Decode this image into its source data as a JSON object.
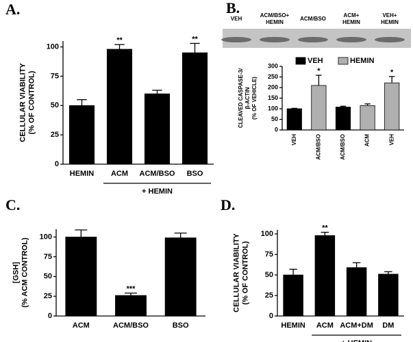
{
  "chart_data": [
    {
      "type": "bar",
      "panel": "A.",
      "ylabel": [
        "CELLULAR VIABILITY",
        "(% OF CONTROL)"
      ],
      "categories": [
        "HEMIN",
        "ACM",
        "ACM/BSO",
        "BSO"
      ],
      "values": [
        50,
        98,
        60,
        95
      ],
      "errors": [
        5,
        4,
        3,
        8
      ],
      "significance": [
        null,
        "**",
        null,
        "**"
      ],
      "color": "#000000",
      "group_label": "+ HEMIN",
      "ylim": [
        0,
        105
      ],
      "yticks": [
        0,
        25,
        50,
        75,
        100
      ]
    },
    {
      "type": "bar",
      "panel": "B.",
      "ylabel": [
        "CLEAVED CASPASE-3/",
        "β-ACTIN",
        "(% OF VEHICLE)"
      ],
      "blot_labels": [
        [
          "VEH"
        ],
        [
          "ACM/BSO+",
          "HEMIN"
        ],
        [
          "ACM/BSO"
        ],
        [
          "ACM+",
          "HEMIN"
        ],
        [
          "VEH+",
          "HEMIN"
        ]
      ],
      "categories": [
        "VEH",
        "ACM/BSO",
        "ACM/BSO",
        "ACM",
        "VEH"
      ],
      "series": [
        {
          "name": "VEH",
          "color": "#000000",
          "values": [
            100,
            null,
            108,
            null,
            null
          ],
          "errors": [
            2,
            null,
            4,
            null,
            null
          ]
        },
        {
          "name": "HEMIN",
          "color": "#b0b0b0",
          "values": [
            null,
            210,
            null,
            115,
            222
          ],
          "errors": [
            null,
            48,
            null,
            8,
            30
          ]
        }
      ],
      "significance": [
        null,
        "*",
        null,
        null,
        "*"
      ],
      "ylim": [
        0,
        300
      ],
      "yticks": [
        0,
        50,
        100,
        150,
        200,
        250,
        300
      ]
    },
    {
      "type": "bar",
      "panel": "C.",
      "ylabel": [
        "[GSH]",
        "(% ACM CONTROL)"
      ],
      "categories": [
        "ACM",
        "ACM/BSO",
        "BSO"
      ],
      "values": [
        100,
        26,
        99
      ],
      "errors": [
        9,
        3,
        6
      ],
      "significance": [
        null,
        "***",
        null
      ],
      "color": "#000000",
      "ylim": [
        0,
        110
      ],
      "yticks": [
        0,
        25,
        50,
        75,
        100
      ]
    },
    {
      "type": "bar",
      "panel": "D.",
      "ylabel": [
        "CELLULAR VIABILITY",
        "(% OF CONTROL)"
      ],
      "categories": [
        "HEMIN",
        "ACM",
        "ACM+DM",
        "DM"
      ],
      "values": [
        50,
        98,
        59,
        51
      ],
      "errors": [
        7,
        4,
        6,
        3
      ],
      "significance": [
        null,
        "**",
        null,
        null
      ],
      "color": "#000000",
      "group_label": "+ HEMIN",
      "ylim": [
        0,
        105
      ],
      "yticks": [
        0,
        25,
        50,
        75,
        100
      ]
    }
  ]
}
